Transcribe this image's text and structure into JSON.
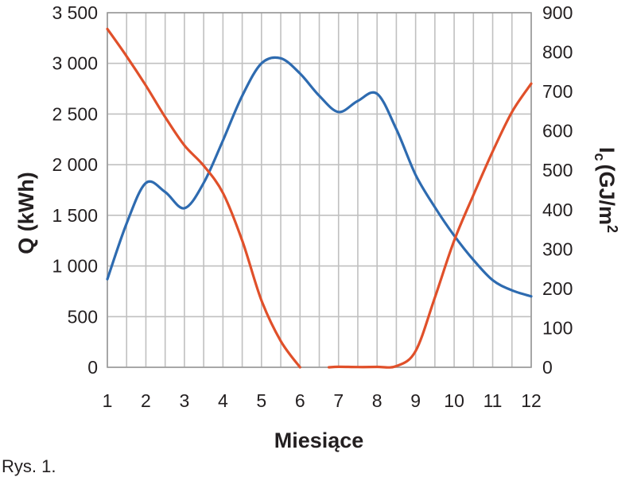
{
  "chart_data": {
    "type": "line",
    "xlabel": "Miesiące",
    "ylabel_left": "Q (kWh)",
    "ylabel_right": "I",
    "ylabel_right_sub": "c",
    "ylabel_right_unit": "(GJ/m",
    "ylabel_right_sup": "2",
    "x": [
      1,
      2,
      3,
      4,
      5,
      6,
      7,
      8,
      9,
      10,
      11,
      12
    ],
    "x_tick_labels": [
      "1",
      "2",
      "3",
      "4",
      "5",
      "6",
      "7",
      "8",
      "9",
      "10",
      "11",
      "12"
    ],
    "xlim": [
      1,
      12
    ],
    "ylim_left": [
      0,
      3500
    ],
    "ylim_right": [
      0,
      900
    ],
    "y_left_tick_values": [
      0,
      500,
      1000,
      1500,
      2000,
      2500,
      3000,
      3500
    ],
    "y_left_tick_labels": [
      "0",
      "500",
      "1 000",
      "1 500",
      "2 000",
      "2 500",
      "3 000",
      "3 500"
    ],
    "y_right_tick_values": [
      0,
      100,
      200,
      300,
      400,
      500,
      600,
      700,
      800,
      900
    ],
    "y_right_tick_labels": [
      "0",
      "100",
      "200",
      "300",
      "400",
      "500",
      "600",
      "700",
      "800",
      "900"
    ],
    "grid": true,
    "series": [
      {
        "axis": "left",
        "color": "#2e6bb0",
        "points": [
          [
            1,
            870
          ],
          [
            1.5,
            1420
          ],
          [
            2,
            1820
          ],
          [
            2.5,
            1730
          ],
          [
            3,
            1570
          ],
          [
            3.5,
            1820
          ],
          [
            4,
            2240
          ],
          [
            4.5,
            2680
          ],
          [
            5,
            3000
          ],
          [
            5.5,
            3050
          ],
          [
            6,
            2900
          ],
          [
            6.5,
            2680
          ],
          [
            7,
            2520
          ],
          [
            7.5,
            2630
          ],
          [
            8,
            2700
          ],
          [
            8.5,
            2350
          ],
          [
            9,
            1900
          ],
          [
            9.5,
            1580
          ],
          [
            10,
            1300
          ],
          [
            10.5,
            1060
          ],
          [
            11,
            860
          ],
          [
            11.5,
            760
          ],
          [
            12,
            700
          ]
        ]
      },
      {
        "axis": "left",
        "color": "#e0502a",
        "points": [
          [
            1,
            3340
          ],
          [
            1.5,
            3070
          ],
          [
            2,
            2780
          ],
          [
            2.5,
            2470
          ],
          [
            3,
            2190
          ],
          [
            3.5,
            1990
          ],
          [
            4,
            1720
          ],
          [
            4.5,
            1250
          ],
          [
            5,
            660
          ],
          [
            5.5,
            260
          ],
          [
            6,
            0
          ]
        ]
      },
      {
        "axis": "left",
        "color": "#e0502a",
        "points": [
          [
            6.75,
            0
          ],
          [
            7,
            5
          ],
          [
            7.5,
            2
          ],
          [
            8,
            4
          ],
          [
            8.5,
            12
          ],
          [
            9,
            160
          ],
          [
            9.5,
            690
          ],
          [
            10,
            1250
          ],
          [
            10.5,
            1700
          ],
          [
            11,
            2130
          ],
          [
            11.5,
            2520
          ],
          [
            12,
            2800
          ]
        ]
      }
    ]
  },
  "caption": "Rys. 1."
}
